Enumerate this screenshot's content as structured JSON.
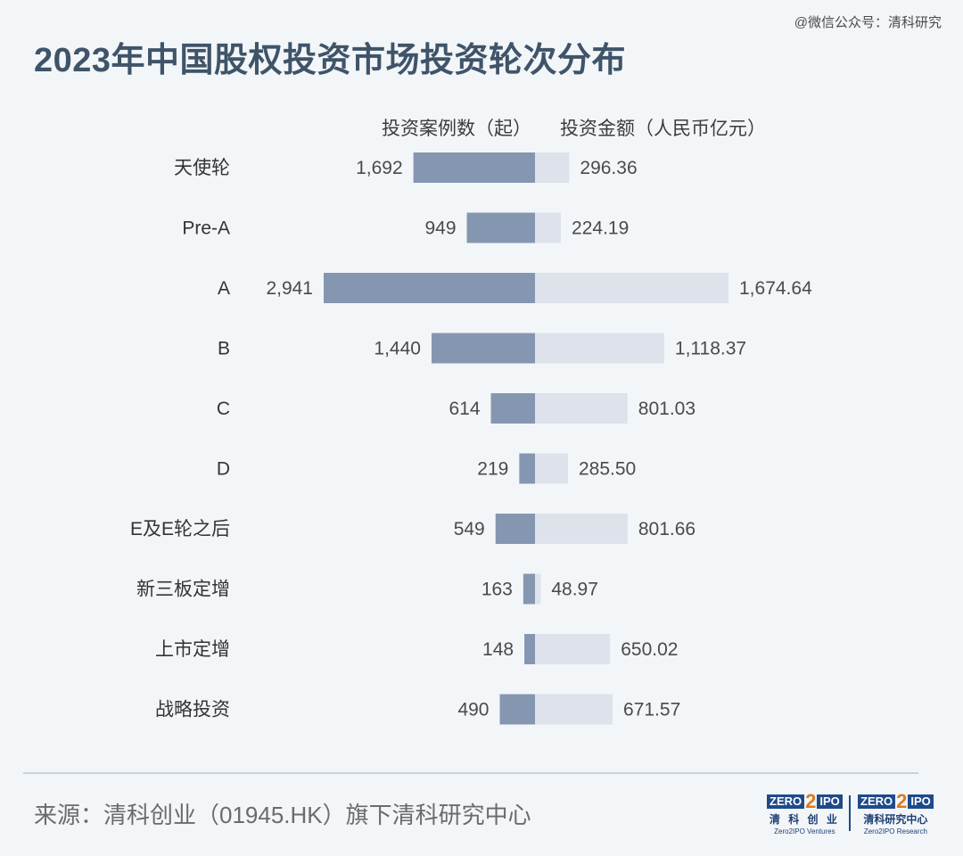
{
  "watermark": "@微信公众号：清科研究",
  "title": "2023年中国股权投资市场投资轮次分布",
  "source": "来源：清科创业（01945.HK）旗下清科研究中心",
  "logos": [
    {
      "brand": "ZERO2IPO",
      "cn": "清 科 创 业",
      "en": "Zero2IPO Ventures"
    },
    {
      "brand": "ZERO2IPO",
      "cn": "清科研究中心",
      "en": "Zero2IPO Research"
    }
  ],
  "chart_data": {
    "type": "bar",
    "orientation": "horizontal-diverging",
    "categories": [
      "天使轮",
      "Pre-A",
      "A",
      "B",
      "C",
      "D",
      "E及E轮之后",
      "新三板定增",
      "上市定增",
      "战略投资"
    ],
    "series": [
      {
        "name": "投资案例数（起）",
        "values": [
          1692,
          949,
          2941,
          1440,
          614,
          219,
          549,
          163,
          148,
          490
        ],
        "labels": [
          "1,692",
          "949",
          "2,941",
          "1,440",
          "614",
          "219",
          "549",
          "163",
          "148",
          "490"
        ],
        "color": "#8596b0"
      },
      {
        "name": "投资金额（人民币亿元）",
        "values": [
          296.36,
          224.19,
          1674.64,
          1118.37,
          801.03,
          285.5,
          801.66,
          48.97,
          650.02,
          671.57
        ],
        "labels": [
          "296.36",
          "224.19",
          "1,674.64",
          "1,118.37",
          "801.03",
          "285.50",
          "801.66",
          "48.97",
          "650.02",
          "671.57"
        ],
        "color": "#dde2eb"
      }
    ]
  }
}
